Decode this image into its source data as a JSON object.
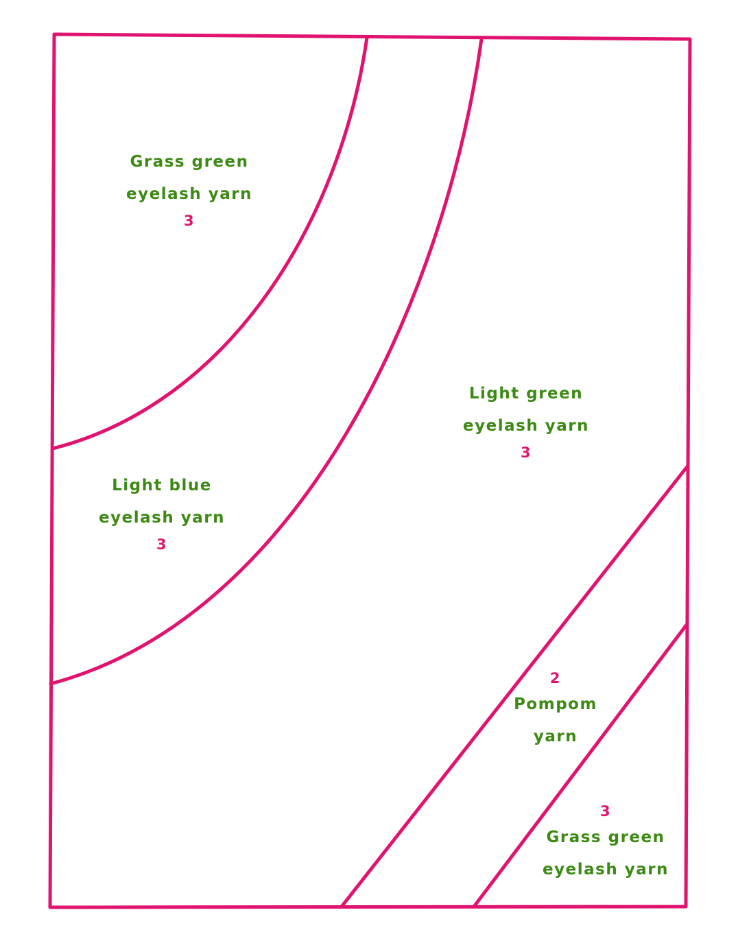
{
  "colors": {
    "outline": "#e0146e",
    "label_text": "#3c8a14",
    "count_text": "#e0146e",
    "background": "#ffffff"
  },
  "regions": {
    "top_left": {
      "line1": "Grass green",
      "line2": "eyelash yarn",
      "count": "3"
    },
    "left_middle": {
      "line1": "Light blue",
      "line2": "eyelash yarn",
      "count": "3"
    },
    "right_center": {
      "line1": "Light green",
      "line2": "eyelash yarn",
      "count": "3"
    },
    "bottom_band": {
      "count": "2",
      "line1": "Pompom",
      "line2": "yarn"
    },
    "bottom_right": {
      "count": "3",
      "line1": "Grass green",
      "line2": "eyelash yarn"
    }
  }
}
